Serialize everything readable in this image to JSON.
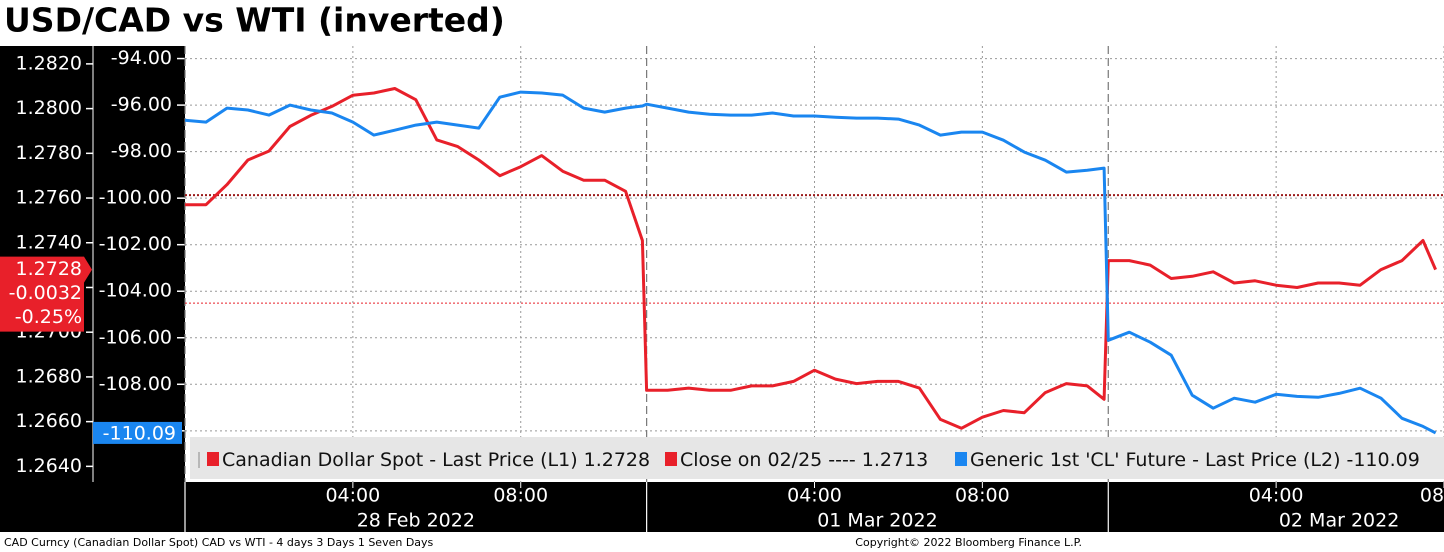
{
  "chart_data": {
    "type": "line",
    "title": "USD/CAD vs WTI (inverted)",
    "footer_left": "CAD Curncy (Canadian Dollar Spot) CAD vs WTI - 4 days 3 Days 1 Seven Days",
    "footer_right": "Copyright© 2022 Bloomberg Finance L.P.",
    "x": [
      0,
      0.5,
      1,
      1.5,
      2,
      2.5,
      3,
      3.5,
      4,
      4.5,
      5,
      5.5,
      6,
      6.5,
      7,
      7.5,
      8,
      8.5,
      9,
      9.5,
      10,
      10.5,
      10.9,
      11,
      11.5,
      12,
      12.5,
      13,
      13.5,
      14,
      14.5,
      15,
      15.5,
      16,
      16.5,
      17,
      17.5,
      18,
      18.5,
      19,
      19.5,
      20,
      20.5,
      21,
      21.5,
      21.9,
      22,
      22.5,
      23,
      23.5,
      24,
      24.5,
      25,
      25.5,
      26,
      26.5,
      27,
      27.5,
      28,
      28.5,
      29,
      29.5,
      29.8
    ],
    "xlim": [
      0,
      30
    ],
    "xticks": [
      {
        "value": 4,
        "label": "04:00"
      },
      {
        "value": 8,
        "label": "08:00"
      },
      {
        "value": 15,
        "label": "04:00"
      },
      {
        "value": 19,
        "label": "08:00"
      },
      {
        "value": 26,
        "label": "04:00"
      },
      {
        "value": 30,
        "label": "08"
      }
    ],
    "date_ticks": [
      {
        "value": 5.5,
        "label": "28 Feb 2022"
      },
      {
        "value": 16.5,
        "label": "01 Mar 2022"
      },
      {
        "value": 27.5,
        "label": "02 Mar 2022"
      }
    ],
    "session_breaks": [
      0,
      11,
      22
    ],
    "ylim": [
      1.2633,
      1.2828
    ],
    "yticks": [
      {
        "value": 1.264,
        "label": "1.2640"
      },
      {
        "value": 1.266,
        "label": "1.2660"
      },
      {
        "value": 1.268,
        "label": "1.2680"
      },
      {
        "value": 1.27,
        "label": "1.2700"
      },
      {
        "value": 1.272,
        "label": "1.2720"
      },
      {
        "value": 1.274,
        "label": "1.2740"
      },
      {
        "value": 1.276,
        "label": "1.2760"
      },
      {
        "value": 1.278,
        "label": "1.2780"
      },
      {
        "value": 1.28,
        "label": "1.2800"
      },
      {
        "value": 1.282,
        "label": "1.2820"
      }
    ],
    "y2lim": [
      -112.2,
      -93.46
    ],
    "y2ticks": [
      {
        "value": -110,
        "label": "-110.00"
      },
      {
        "value": -108,
        "label": "-108.00"
      },
      {
        "value": -106,
        "label": "-106.00"
      },
      {
        "value": -104,
        "label": "-104.00"
      },
      {
        "value": -102,
        "label": "-102.00"
      },
      {
        "value": -100,
        "label": "-100.00"
      },
      {
        "value": -98,
        "label": "-98.00"
      },
      {
        "value": -96,
        "label": "-96.00"
      },
      {
        "value": -94,
        "label": "-94.00"
      }
    ],
    "grid": true,
    "series": [
      {
        "name": "Canadian Dollar Spot - Last Price (L1)",
        "color": "#e8202a",
        "axis": "y",
        "last_value": 1.2728,
        "change": -0.0032,
        "change_pct": {
          "value": -0.25,
          "label": "-0.25%"
        },
        "values": [
          1.2757,
          1.2757,
          1.2766,
          1.2777,
          1.2781,
          1.2792,
          1.2797,
          1.2801,
          1.2806,
          1.2807,
          1.2809,
          1.2804,
          1.2786,
          1.2783,
          1.2777,
          1.277,
          1.2774,
          1.2779,
          1.2772,
          1.2768,
          1.2768,
          1.2763,
          1.2741,
          1.2674,
          1.2674,
          1.2675,
          1.2674,
          1.2674,
          1.2676,
          1.2676,
          1.2678,
          1.2683,
          1.2679,
          1.2677,
          1.2678,
          1.2678,
          1.2675,
          1.2661,
          1.2657,
          1.2662,
          1.2665,
          1.2664,
          1.2673,
          1.2677,
          1.2676,
          1.267,
          1.2732,
          1.2732,
          1.273,
          1.2724,
          1.2725,
          1.2727,
          1.2722,
          1.2723,
          1.2721,
          1.272,
          1.2722,
          1.2722,
          1.2721,
          1.2728,
          1.2732,
          1.2741,
          1.2728
        ]
      },
      {
        "name": "Generic 1st 'CL' Future - Last Price (L2)",
        "color": "#1a86f0",
        "axis": "y2",
        "last_value": -110.09,
        "values": [
          -96.65,
          -96.73,
          -96.13,
          -96.21,
          -96.43,
          -96.0,
          -96.21,
          -96.34,
          -96.73,
          -97.29,
          -97.08,
          -96.86,
          -96.73,
          -96.86,
          -96.99,
          -95.66,
          -95.44,
          -95.48,
          -95.57,
          -96.13,
          -96.3,
          -96.13,
          -96.04,
          -95.96,
          -96.13,
          -96.3,
          -96.39,
          -96.43,
          -96.43,
          -96.34,
          -96.47,
          -96.47,
          -96.52,
          -96.56,
          -96.56,
          -96.6,
          -96.86,
          -97.29,
          -97.16,
          -97.16,
          -97.51,
          -98.02,
          -98.37,
          -98.88,
          -98.8,
          -98.71,
          -106.11,
          -105.76,
          -106.19,
          -106.75,
          -108.47,
          -109.03,
          -108.6,
          -108.77,
          -108.43,
          -108.52,
          -108.56,
          -108.39,
          -108.17,
          -108.6,
          -109.46,
          -109.81,
          -110.09
        ]
      }
    ],
    "close_line": {
      "name": "Close on 02/25 ----",
      "value": 1.2713,
      "color": "#e8202a",
      "axis": "y"
    },
    "reference_lines": [
      {
        "value": -99.87,
        "axis": "y2",
        "color": "#9b1b1b"
      }
    ]
  }
}
